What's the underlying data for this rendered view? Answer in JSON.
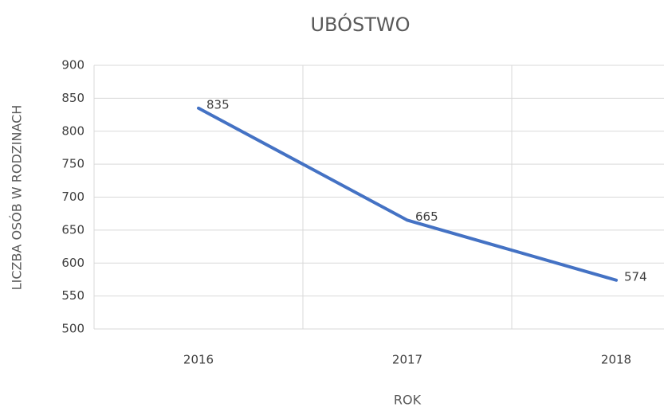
{
  "chart_data": {
    "type": "line",
    "title": "UBÓSTWO",
    "x_label": "ROK",
    "y_label": "LICZBA OSÓB W RODZINACH",
    "categories": [
      "2016",
      "2017",
      "2018"
    ],
    "series": [
      {
        "name": "LICZBA OSÓB W RODZINACH",
        "color": "#4472c4",
        "values": [
          835,
          665,
          574
        ]
      }
    ],
    "ylim": [
      500,
      900
    ],
    "yticks": [
      500,
      550,
      600,
      650,
      700,
      750,
      800,
      850,
      900
    ],
    "grid": true,
    "data_labels": true
  }
}
